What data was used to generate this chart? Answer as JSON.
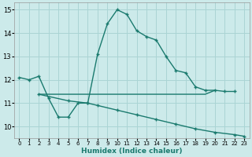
{
  "xlabel": "Humidex (Indice chaleur)",
  "bg_color": "#cceaea",
  "grid_color": "#aad4d4",
  "line_color": "#1a7a6e",
  "xlim": [
    -0.5,
    23.5
  ],
  "ylim": [
    9.5,
    15.3
  ],
  "yticks": [
    10,
    11,
    12,
    13,
    14,
    15
  ],
  "xticks": [
    0,
    1,
    2,
    3,
    4,
    5,
    6,
    7,
    8,
    9,
    10,
    11,
    12,
    13,
    14,
    15,
    16,
    17,
    18,
    19,
    20,
    21,
    22,
    23
  ],
  "curve1_x": [
    0,
    1,
    2,
    3,
    4,
    5,
    6,
    7,
    8,
    9,
    10,
    11,
    12,
    13,
    14,
    15,
    16,
    17,
    18,
    19,
    20,
    21,
    22
  ],
  "curve1_y": [
    12.1,
    12.0,
    12.15,
    11.2,
    10.4,
    10.4,
    11.0,
    11.0,
    13.1,
    14.4,
    15.0,
    14.8,
    14.1,
    13.85,
    13.7,
    13.0,
    12.4,
    12.3,
    11.7,
    11.55,
    11.55,
    11.5,
    11.5
  ],
  "curve2_x": [
    2,
    3,
    4,
    5,
    6,
    7,
    8,
    9,
    10,
    11,
    12,
    13,
    14,
    15,
    16,
    17,
    18,
    19,
    20
  ],
  "curve2_y": [
    11.38,
    11.38,
    11.38,
    11.38,
    11.38,
    11.38,
    11.38,
    11.38,
    11.38,
    11.38,
    11.38,
    11.38,
    11.38,
    11.38,
    11.38,
    11.38,
    11.38,
    11.38,
    11.55
  ],
  "curve3_x": [
    2,
    5,
    7,
    8,
    10,
    12,
    14,
    16,
    18,
    20,
    22,
    23
  ],
  "curve3_y": [
    11.38,
    11.1,
    11.0,
    10.9,
    10.7,
    10.5,
    10.3,
    10.1,
    9.9,
    9.75,
    9.65,
    9.58
  ]
}
